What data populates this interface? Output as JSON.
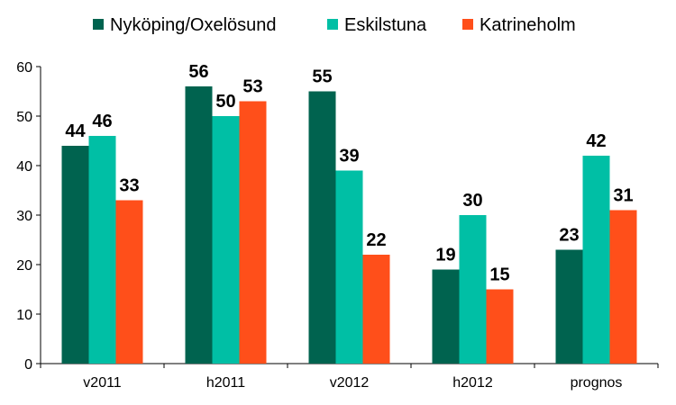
{
  "chart_data": {
    "type": "bar",
    "categories": [
      "v2011",
      "h2011",
      "v2012",
      "h2012",
      "prognos"
    ],
    "series": [
      {
        "name": "Nyköping/Oxelösund",
        "color": "#00634F",
        "values": [
          44,
          56,
          55,
          19,
          23
        ]
      },
      {
        "name": "Eskilstuna",
        "color": "#00BFA5",
        "values": [
          46,
          50,
          39,
          30,
          42
        ]
      },
      {
        "name": "Katrineholm",
        "color": "#FF4F1A",
        "values": [
          33,
          53,
          22,
          15,
          31
        ]
      }
    ],
    "ylim": [
      0,
      60
    ],
    "yticks": [
      0,
      10,
      20,
      30,
      40,
      50,
      60
    ],
    "grid": false,
    "legend": "top",
    "title": "",
    "xlabel": "",
    "ylabel": ""
  }
}
